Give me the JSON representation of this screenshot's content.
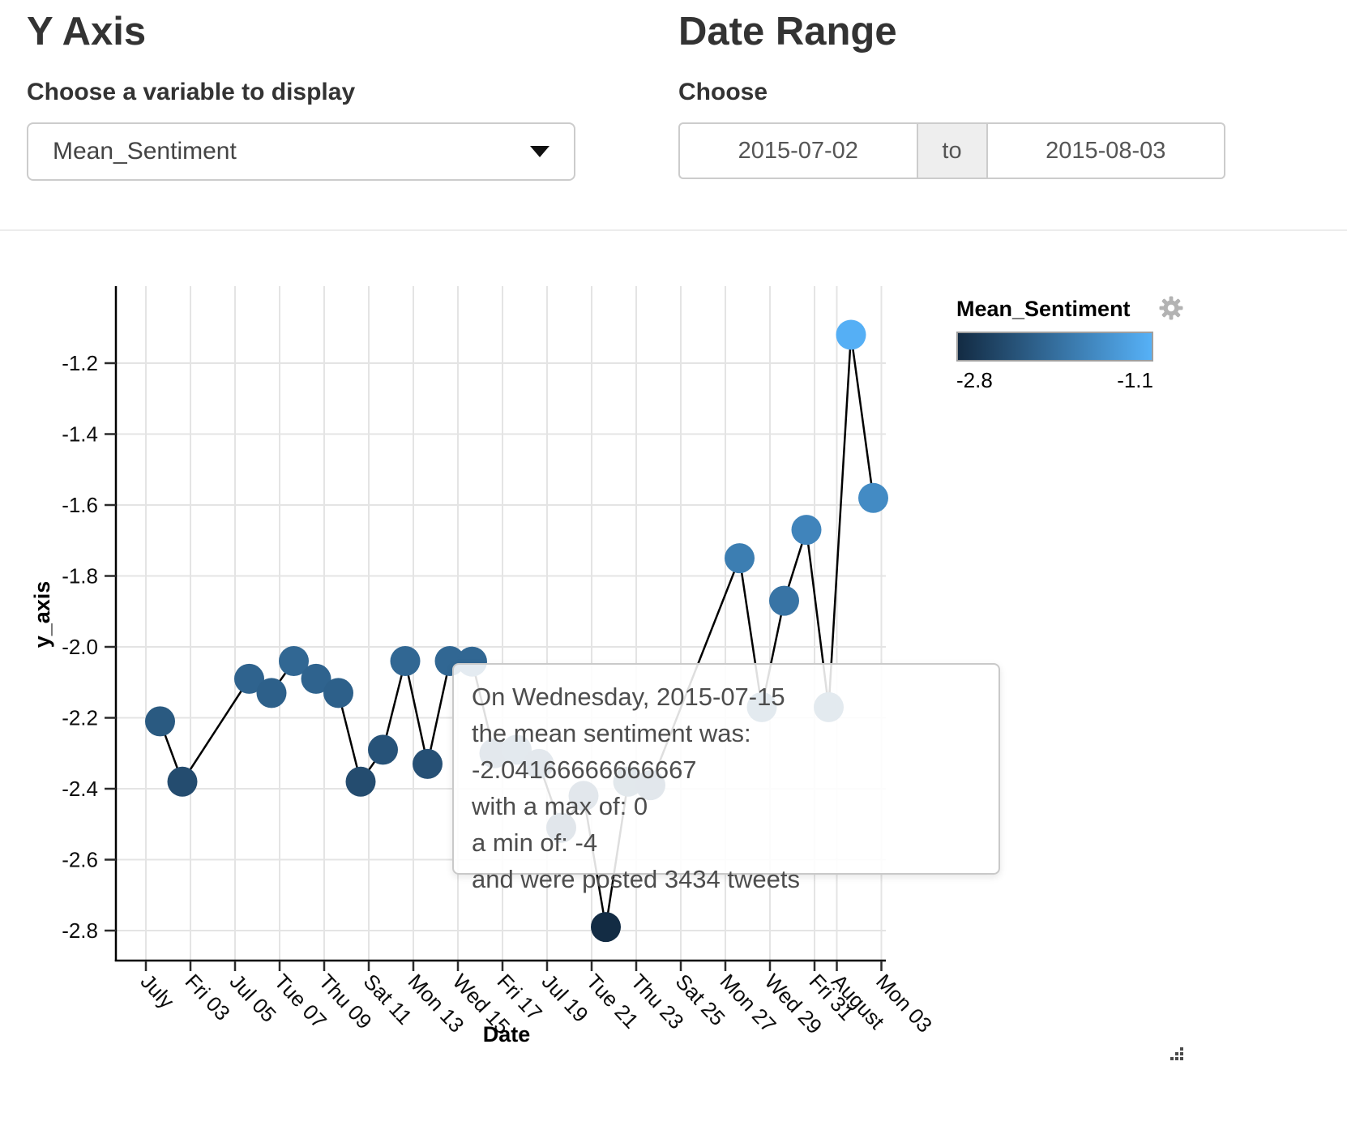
{
  "controls": {
    "y_axis_section": {
      "title": "Y Axis",
      "label": "Choose a variable to display",
      "selected_variable": "Mean_Sentiment"
    },
    "date_range_section": {
      "title": "Date Range",
      "label": "Choose",
      "start_date": "2015-07-02",
      "separator": "to",
      "end_date": "2015-08-03"
    }
  },
  "legend": {
    "title": "Mean_Sentiment",
    "min_label": "-2.8",
    "max_label": "-1.1",
    "gradient_low": "#132B43",
    "gradient_high": "#56B1F7"
  },
  "tooltip": {
    "lines": [
      "On Wednesday, 2015-07-15",
      "the mean sentiment was: -2.04166666666667",
      "with a max of: 0",
      "a min of: -4",
      "and were posted 3434 tweets"
    ]
  },
  "chart_data": {
    "type": "line",
    "xlabel": "Date",
    "ylabel": "y_axis",
    "grid": true,
    "legend_position": "top-right",
    "ylim": [
      -2.89,
      -0.99
    ],
    "y_ticks": [
      -1.2,
      -1.4,
      -1.6,
      -1.8,
      -2.0,
      -2.2,
      -2.4,
      -2.6,
      -2.8
    ],
    "x_ticks": [
      {
        "day": 1,
        "label": "July"
      },
      {
        "day": 3,
        "label": "Fri 03"
      },
      {
        "day": 5,
        "label": "Jul 05"
      },
      {
        "day": 7,
        "label": "Tue 07"
      },
      {
        "day": 9,
        "label": "Thu 09"
      },
      {
        "day": 11,
        "label": "Sat 11"
      },
      {
        "day": 13,
        "label": "Mon 13"
      },
      {
        "day": 15,
        "label": "Wed 15"
      },
      {
        "day": 17,
        "label": "Fri 17"
      },
      {
        "day": 19,
        "label": "Jul 19"
      },
      {
        "day": 21,
        "label": "Tue 21"
      },
      {
        "day": 23,
        "label": "Thu 23"
      },
      {
        "day": 25,
        "label": "Sat 25"
      },
      {
        "day": 27,
        "label": "Mon 27"
      },
      {
        "day": 29,
        "label": "Wed 29"
      },
      {
        "day": 31,
        "label": "Fri 31"
      },
      {
        "day": 32,
        "label": "August"
      },
      {
        "day": 34,
        "label": "Mon 03"
      }
    ],
    "color_scale": {
      "low": "#132B43",
      "high": "#56B1F7",
      "domain": [
        -2.8,
        -1.1
      ]
    },
    "hovered_point": {
      "date": "2015-07-15",
      "value": -2.04166666666667,
      "max": 0,
      "min": -4,
      "tweets": 3434
    },
    "points": [
      {
        "date": "2015-07-01",
        "value": -2.21
      },
      {
        "date": "2015-07-02",
        "value": -2.38
      },
      {
        "date": "2015-07-05",
        "value": -2.09
      },
      {
        "date": "2015-07-06",
        "value": -2.13
      },
      {
        "date": "2015-07-07",
        "value": -2.04
      },
      {
        "date": "2015-07-08",
        "value": -2.09
      },
      {
        "date": "2015-07-09",
        "value": -2.13
      },
      {
        "date": "2015-07-10",
        "value": -2.38
      },
      {
        "date": "2015-07-11",
        "value": -2.29
      },
      {
        "date": "2015-07-12",
        "value": -2.04
      },
      {
        "date": "2015-07-13",
        "value": -2.33
      },
      {
        "date": "2015-07-14",
        "value": -2.04
      },
      {
        "date": "2015-07-15",
        "value": -2.0417
      },
      {
        "date": "2015-07-16",
        "value": -2.3
      },
      {
        "date": "2015-07-17",
        "value": -2.29
      },
      {
        "date": "2015-07-18",
        "value": -2.33
      },
      {
        "date": "2015-07-19",
        "value": -2.51
      },
      {
        "date": "2015-07-20",
        "value": -2.42
      },
      {
        "date": "2015-07-21",
        "value": -2.79
      },
      {
        "date": "2015-07-22",
        "value": -2.38
      },
      {
        "date": "2015-07-23",
        "value": -2.39
      },
      {
        "date": "2015-07-27",
        "value": -1.75
      },
      {
        "date": "2015-07-28",
        "value": -2.17
      },
      {
        "date": "2015-07-29",
        "value": -1.87
      },
      {
        "date": "2015-07-30",
        "value": -1.67
      },
      {
        "date": "2015-07-31",
        "value": -2.17
      },
      {
        "date": "2015-08-01",
        "value": -1.12
      },
      {
        "date": "2015-08-02",
        "value": -1.58
      }
    ]
  }
}
